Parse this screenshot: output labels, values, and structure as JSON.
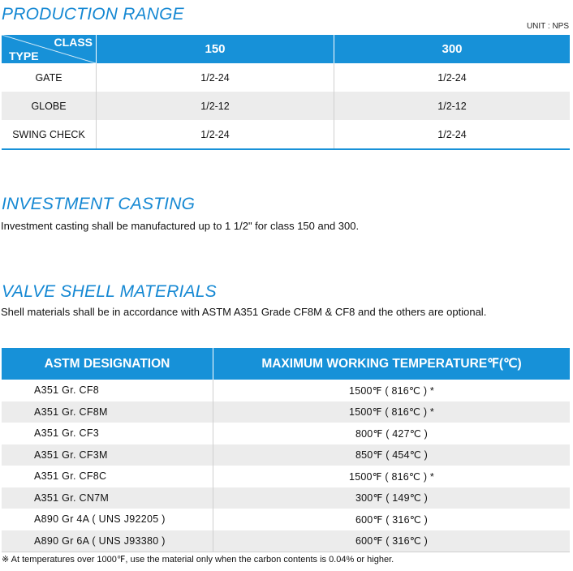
{
  "production_range": {
    "title": "PRODUCTION RANGE",
    "unit": "UNIT : NPS",
    "header": {
      "class_label": "CLASS",
      "type_label": "TYPE",
      "class_150": "150",
      "class_300": "300"
    },
    "rows": [
      {
        "type": "GATE",
        "c150": "1/2-24",
        "c300": "1/2-24"
      },
      {
        "type": "GLOBE",
        "c150": "1/2-12",
        "c300": "1/2-12"
      },
      {
        "type": "SWING CHECK",
        "c150": "1/2-24",
        "c300": "1/2-24"
      }
    ]
  },
  "investment_casting": {
    "title": "INVESTMENT CASTING",
    "text": "Investment casting shall be manufactured up to 1 1/2\" for class 150 and 300."
  },
  "valve_shell": {
    "title": "VALVE SHELL MATERIALS",
    "text": "Shell materials shall be in accordance with ASTM A351 Grade CF8M & CF8 and the others are optional.",
    "header": {
      "designation": "ASTM DESIGNATION",
      "temperature": "MAXIMUM WORKING TEMPERATURE℉(℃)"
    },
    "rows": [
      {
        "designation": "A351  Gr.  CF8",
        "temperature": "1500℉  ( 816℃ ) *"
      },
      {
        "designation": "A351  Gr.  CF8M",
        "temperature": "1500℉  ( 816℃ ) *"
      },
      {
        "designation": "A351  Gr.  CF3",
        "temperature": "800℉  ( 427℃ )"
      },
      {
        "designation": "A351  Gr.  CF3M",
        "temperature": "850℉  ( 454℃ )"
      },
      {
        "designation": "A351  Gr.  CF8C",
        "temperature": "1500℉  ( 816℃ ) *"
      },
      {
        "designation": "A351  Gr.  CN7M",
        "temperature": "300℉  ( 149℃ )"
      },
      {
        "designation": "A890  Gr  4A  ( UNS J92205 )",
        "temperature": "600℉  ( 316℃ )"
      },
      {
        "designation": "A890  Gr  6A  ( UNS J93380 )",
        "temperature": "600℉  ( 316℃ )"
      }
    ],
    "note": "※ At temperatures over 1000℉, use the material only when the carbon contents is 0.04% or higher."
  }
}
